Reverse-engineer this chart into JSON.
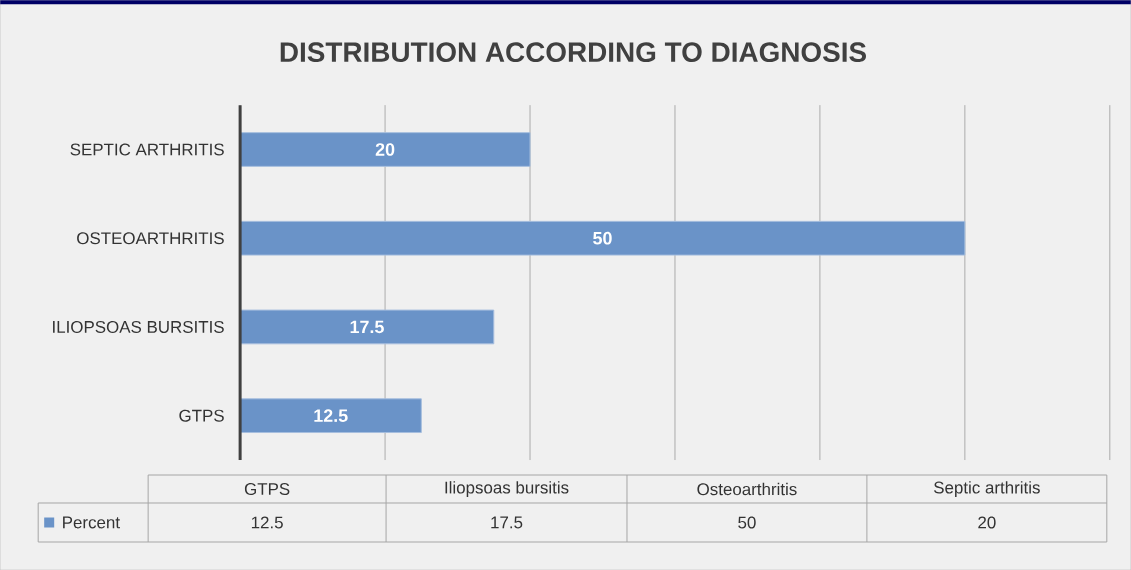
{
  "chart_data": {
    "type": "bar",
    "orientation": "horizontal",
    "title": "DISTRIBUTION ACCORDING TO DIAGNOSIS",
    "categories": [
      "SEPTIC ARTHRITIS",
      "OSTEOARTHRITIS",
      "ILIOPSOAS BURSITIS",
      "GTPS"
    ],
    "series": [
      {
        "name": "Percent",
        "color": "#6a93c8",
        "values": [
          20,
          50,
          17.5,
          12.5
        ],
        "value_labels": [
          "20",
          "50",
          "17.5",
          "12.5"
        ]
      }
    ],
    "xlim": [
      0,
      60
    ],
    "xticks": [
      {
        "value": 0,
        "label": null
      },
      {
        "value": 10,
        "label": null
      },
      {
        "value": 20,
        "label": null
      },
      {
        "value": 30,
        "label": null
      },
      {
        "value": 40,
        "label": null
      },
      {
        "value": 50,
        "label": null
      },
      {
        "value": 60,
        "label": null
      }
    ],
    "grid": "x",
    "tick_labels": "y",
    "legend": "bottom",
    "annotations": [
      "GTPS",
      "Iliopsoas bursitis",
      "Osteoarthritis",
      "Septic arthritis"
    ]
  }
}
